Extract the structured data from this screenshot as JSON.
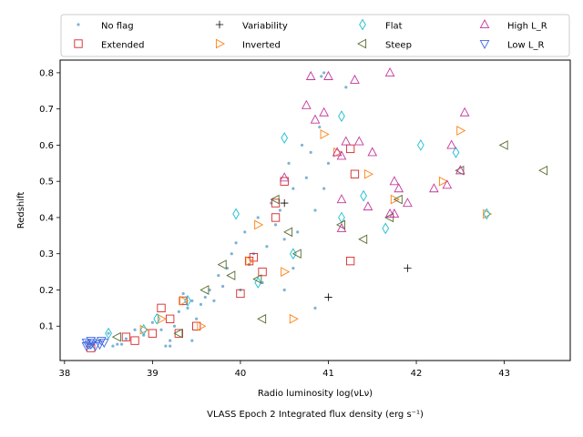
{
  "chart_data": {
    "type": "scatter",
    "title": "",
    "xlabel_main": "Radio luminosity log(νLν)",
    "xlabel_sub": "VLASS Epoch 2 Integrated flux density (erg s⁻¹)",
    "ylabel": "Redshift",
    "xlim": [
      37.95,
      43.75
    ],
    "ylim": [
      0.005,
      0.835
    ],
    "xticks": [
      38,
      39,
      40,
      41,
      42,
      43
    ],
    "xtick_labels": [
      "38",
      "39",
      "40",
      "41",
      "42",
      "43"
    ],
    "yticks": [
      0.1,
      0.2,
      0.3,
      0.4,
      0.5,
      0.6,
      0.7,
      0.8
    ],
    "ytick_labels": [
      "0.1",
      "0.2",
      "0.3",
      "0.4",
      "0.5",
      "0.6",
      "0.7",
      "0.8"
    ],
    "legend_location": "top",
    "series": [
      {
        "name": "No flag",
        "marker": "dot",
        "color": "#7fb3d5",
        "points": [
          [
            38.4,
            0.06
          ],
          [
            38.5,
            0.08
          ],
          [
            38.55,
            0.045
          ],
          [
            38.6,
            0.05
          ],
          [
            38.7,
            0.065
          ],
          [
            38.8,
            0.09
          ],
          [
            38.9,
            0.075
          ],
          [
            39.0,
            0.11
          ],
          [
            39.1,
            0.09
          ],
          [
            39.15,
            0.045
          ],
          [
            39.2,
            0.06
          ],
          [
            39.3,
            0.14
          ],
          [
            39.35,
            0.19
          ],
          [
            39.4,
            0.15
          ],
          [
            39.45,
            0.17
          ],
          [
            39.5,
            0.12
          ],
          [
            39.55,
            0.16
          ],
          [
            39.6,
            0.18
          ],
          [
            39.65,
            0.2
          ],
          [
            39.7,
            0.17
          ],
          [
            39.75,
            0.24
          ],
          [
            39.8,
            0.21
          ],
          [
            39.85,
            0.26
          ],
          [
            39.9,
            0.3
          ],
          [
            39.95,
            0.33
          ],
          [
            40.0,
            0.2
          ],
          [
            40.05,
            0.36
          ],
          [
            40.1,
            0.27
          ],
          [
            40.15,
            0.3
          ],
          [
            40.2,
            0.4
          ],
          [
            40.25,
            0.22
          ],
          [
            40.3,
            0.32
          ],
          [
            40.35,
            0.44
          ],
          [
            40.4,
            0.38
          ],
          [
            40.45,
            0.42
          ],
          [
            40.5,
            0.34
          ],
          [
            40.55,
            0.55
          ],
          [
            40.6,
            0.48
          ],
          [
            40.65,
            0.36
          ],
          [
            40.7,
            0.6
          ],
          [
            40.75,
            0.51
          ],
          [
            40.8,
            0.58
          ],
          [
            40.85,
            0.42
          ],
          [
            40.9,
            0.65
          ],
          [
            40.95,
            0.48
          ],
          [
            41.0,
            0.55
          ],
          [
            40.95,
            0.8
          ],
          [
            40.92,
            0.79
          ],
          [
            41.2,
            0.76
          ],
          [
            40.6,
            0.26
          ],
          [
            40.85,
            0.15
          ],
          [
            39.45,
            0.06
          ],
          [
            39.25,
            0.1
          ],
          [
            38.65,
            0.05
          ],
          [
            40.5,
            0.2
          ],
          [
            39.2,
            0.045
          ]
        ]
      },
      {
        "name": "Extended",
        "marker": "square",
        "color": "#d62728",
        "points": [
          [
            38.3,
            0.04
          ],
          [
            38.7,
            0.07
          ],
          [
            38.8,
            0.06
          ],
          [
            39.0,
            0.08
          ],
          [
            39.1,
            0.15
          ],
          [
            39.2,
            0.12
          ],
          [
            39.3,
            0.08
          ],
          [
            39.35,
            0.17
          ],
          [
            39.5,
            0.1
          ],
          [
            40.0,
            0.19
          ],
          [
            40.1,
            0.28
          ],
          [
            40.15,
            0.29
          ],
          [
            40.25,
            0.25
          ],
          [
            40.4,
            0.4
          ],
          [
            40.4,
            0.44
          ],
          [
            40.5,
            0.5
          ],
          [
            41.25,
            0.59
          ],
          [
            41.3,
            0.52
          ],
          [
            41.25,
            0.28
          ]
        ]
      },
      {
        "name": "Variability",
        "marker": "plus",
        "color": "#000000",
        "points": [
          [
            40.5,
            0.44
          ],
          [
            41.0,
            0.18
          ],
          [
            41.9,
            0.26
          ]
        ]
      },
      {
        "name": "Inverted",
        "marker": "triangle-right",
        "color": "#ff7f0e",
        "points": [
          [
            38.9,
            0.09
          ],
          [
            39.1,
            0.12
          ],
          [
            39.35,
            0.17
          ],
          [
            39.55,
            0.1
          ],
          [
            40.1,
            0.28
          ],
          [
            40.2,
            0.38
          ],
          [
            40.5,
            0.25
          ],
          [
            40.6,
            0.12
          ],
          [
            40.95,
            0.63
          ],
          [
            41.1,
            0.58
          ],
          [
            41.45,
            0.52
          ],
          [
            41.75,
            0.45
          ],
          [
            42.5,
            0.64
          ],
          [
            42.8,
            0.41
          ],
          [
            42.3,
            0.5
          ]
        ]
      },
      {
        "name": "Flat",
        "marker": "diamond",
        "color": "#17becf",
        "points": [
          [
            38.5,
            0.08
          ],
          [
            38.9,
            0.09
          ],
          [
            39.05,
            0.12
          ],
          [
            39.4,
            0.17
          ],
          [
            39.95,
            0.41
          ],
          [
            40.2,
            0.22
          ],
          [
            40.5,
            0.62
          ],
          [
            40.6,
            0.3
          ],
          [
            41.15,
            0.68
          ],
          [
            41.15,
            0.4
          ],
          [
            41.4,
            0.46
          ],
          [
            41.65,
            0.37
          ],
          [
            42.05,
            0.6
          ],
          [
            42.45,
            0.58
          ],
          [
            42.8,
            0.41
          ]
        ]
      },
      {
        "name": "Steep",
        "marker": "triangle-left",
        "color": "#556b2f",
        "points": [
          [
            38.6,
            0.07
          ],
          [
            39.3,
            0.08
          ],
          [
            39.6,
            0.2
          ],
          [
            39.8,
            0.27
          ],
          [
            39.9,
            0.24
          ],
          [
            40.2,
            0.23
          ],
          [
            40.25,
            0.12
          ],
          [
            40.4,
            0.45
          ],
          [
            40.55,
            0.36
          ],
          [
            40.65,
            0.3
          ],
          [
            41.15,
            0.38
          ],
          [
            41.4,
            0.34
          ],
          [
            41.7,
            0.4
          ],
          [
            41.8,
            0.45
          ],
          [
            42.5,
            0.53
          ],
          [
            43.0,
            0.6
          ],
          [
            43.45,
            0.53
          ]
        ]
      },
      {
        "name": "High L_R",
        "marker": "triangle-up",
        "color": "#c2399b",
        "points": [
          [
            40.75,
            0.71
          ],
          [
            40.8,
            0.79
          ],
          [
            40.85,
            0.67
          ],
          [
            40.95,
            0.69
          ],
          [
            41.0,
            0.79
          ],
          [
            41.1,
            0.58
          ],
          [
            41.15,
            0.57
          ],
          [
            41.2,
            0.61
          ],
          [
            41.3,
            0.78
          ],
          [
            41.35,
            0.61
          ],
          [
            41.5,
            0.58
          ],
          [
            41.7,
            0.8
          ],
          [
            41.75,
            0.5
          ],
          [
            41.8,
            0.48
          ],
          [
            41.9,
            0.44
          ],
          [
            42.2,
            0.48
          ],
          [
            42.4,
            0.6
          ],
          [
            42.5,
            0.53
          ],
          [
            42.55,
            0.69
          ],
          [
            42.35,
            0.49
          ],
          [
            41.15,
            0.45
          ],
          [
            41.15,
            0.37
          ],
          [
            41.45,
            0.43
          ],
          [
            41.7,
            0.41
          ],
          [
            41.75,
            0.41
          ],
          [
            40.5,
            0.51
          ]
        ]
      },
      {
        "name": "Low L_R",
        "marker": "triangle-down",
        "color": "#4169e1",
        "points": [
          [
            38.25,
            0.055
          ],
          [
            38.28,
            0.05
          ],
          [
            38.3,
            0.05
          ],
          [
            38.32,
            0.055
          ],
          [
            38.35,
            0.045
          ],
          [
            38.4,
            0.05
          ],
          [
            38.42,
            0.06
          ],
          [
            38.45,
            0.055
          ],
          [
            38.25,
            0.045
          ],
          [
            38.3,
            0.06
          ]
        ]
      }
    ]
  }
}
